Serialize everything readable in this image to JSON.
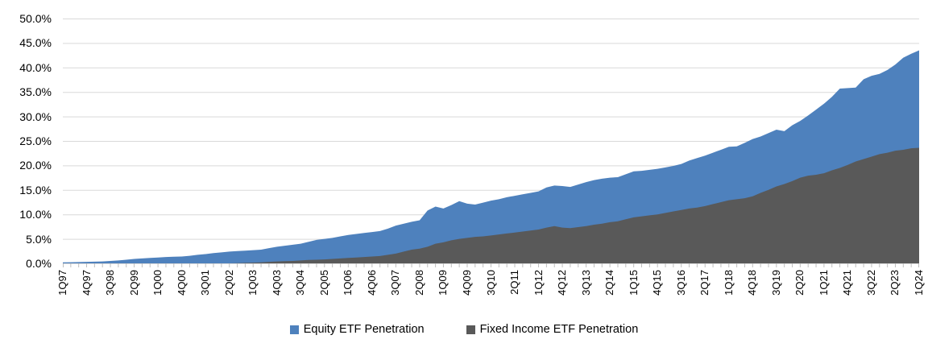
{
  "chart_data": {
    "type": "area",
    "variant": "overlapping-areas-from-zero-baseline",
    "title": "",
    "x_start": "1Q97",
    "x_end": "1Q24",
    "n_points": 109,
    "quarters_per_tick_label": 3,
    "x_tick_labels": [
      "1Q97",
      "4Q97",
      "3Q98",
      "2Q99",
      "1Q00",
      "4Q00",
      "3Q01",
      "2Q02",
      "1Q03",
      "4Q03",
      "3Q04",
      "2Q05",
      "1Q06",
      "4Q06",
      "3Q07",
      "2Q08",
      "1Q09",
      "4Q09",
      "3Q10",
      "2Q11",
      "1Q12",
      "4Q12",
      "3Q13",
      "2Q14",
      "1Q15",
      "4Q15",
      "3Q16",
      "2Q17",
      "1Q18",
      "4Q18",
      "3Q19",
      "2Q20",
      "1Q21",
      "4Q21",
      "3Q22",
      "2Q23",
      "1Q24"
    ],
    "y_tick_labels": [
      "50.0%",
      "45.0%",
      "40.0%",
      "35.0%",
      "30.0%",
      "25.0%",
      "20.0%",
      "15.0%",
      "10.0%",
      "5.0%",
      "0.0%"
    ],
    "ylim": [
      0,
      50
    ],
    "y_gridline_step_pct": 5,
    "grid": "horizontal",
    "legend_position": "bottom-center",
    "gridline_color": "#D9D9D9",
    "axis_tick_color": "#BFBFBF",
    "series": [
      {
        "name": "Equity ETF Penetration",
        "color": "#4E81BD",
        "values": [
          0.2,
          0.23,
          0.26,
          0.3,
          0.35,
          0.4,
          0.5,
          0.6,
          0.75,
          0.9,
          1.0,
          1.1,
          1.2,
          1.3,
          1.35,
          1.4,
          1.55,
          1.75,
          1.9,
          2.1,
          2.25,
          2.4,
          2.5,
          2.6,
          2.7,
          2.8,
          3.1,
          3.4,
          3.6,
          3.8,
          4.0,
          4.4,
          4.8,
          5.0,
          5.2,
          5.5,
          5.8,
          6.0,
          6.2,
          6.4,
          6.6,
          7.1,
          7.7,
          8.1,
          8.5,
          8.8,
          10.8,
          11.6,
          11.2,
          11.9,
          12.7,
          12.2,
          12.0,
          12.4,
          12.8,
          13.1,
          13.5,
          13.8,
          14.1,
          14.4,
          14.7,
          15.5,
          15.9,
          15.8,
          15.6,
          16.1,
          16.6,
          17.0,
          17.3,
          17.5,
          17.6,
          18.2,
          18.8,
          18.9,
          19.1,
          19.3,
          19.6,
          19.9,
          20.3,
          21.0,
          21.5,
          22.0,
          22.6,
          23.2,
          23.8,
          23.9,
          24.6,
          25.4,
          25.9,
          26.6,
          27.3,
          27.0,
          28.2,
          29.1,
          30.2,
          31.4,
          32.6,
          34.0,
          35.7,
          35.8,
          35.9,
          37.6,
          38.3,
          38.7,
          39.5,
          40.6,
          42.0,
          42.8,
          43.5
        ]
      },
      {
        "name": "Fixed Income ETF Penetration",
        "color": "#595959",
        "values": [
          0,
          0,
          0,
          0,
          0,
          0,
          0,
          0,
          0,
          0,
          0,
          0,
          0,
          0,
          0,
          0,
          0,
          0,
          0,
          0,
          0,
          0,
          0.05,
          0.1,
          0.15,
          0.2,
          0.3,
          0.4,
          0.45,
          0.5,
          0.6,
          0.7,
          0.75,
          0.8,
          0.9,
          1.0,
          1.1,
          1.2,
          1.3,
          1.4,
          1.5,
          1.75,
          2.0,
          2.4,
          2.8,
          3.0,
          3.4,
          4.0,
          4.3,
          4.7,
          5.0,
          5.2,
          5.4,
          5.5,
          5.7,
          5.9,
          6.1,
          6.3,
          6.5,
          6.7,
          6.9,
          7.3,
          7.6,
          7.3,
          7.2,
          7.4,
          7.6,
          7.9,
          8.1,
          8.4,
          8.6,
          9.0,
          9.4,
          9.6,
          9.8,
          10.0,
          10.3,
          10.6,
          10.9,
          11.2,
          11.4,
          11.7,
          12.1,
          12.5,
          12.9,
          13.1,
          13.3,
          13.7,
          14.4,
          15.0,
          15.7,
          16.2,
          16.8,
          17.5,
          17.9,
          18.1,
          18.4,
          19.0,
          19.5,
          20.1,
          20.8,
          21.3,
          21.8,
          22.3,
          22.6,
          23.0,
          23.2,
          23.5,
          23.6
        ]
      }
    ]
  }
}
